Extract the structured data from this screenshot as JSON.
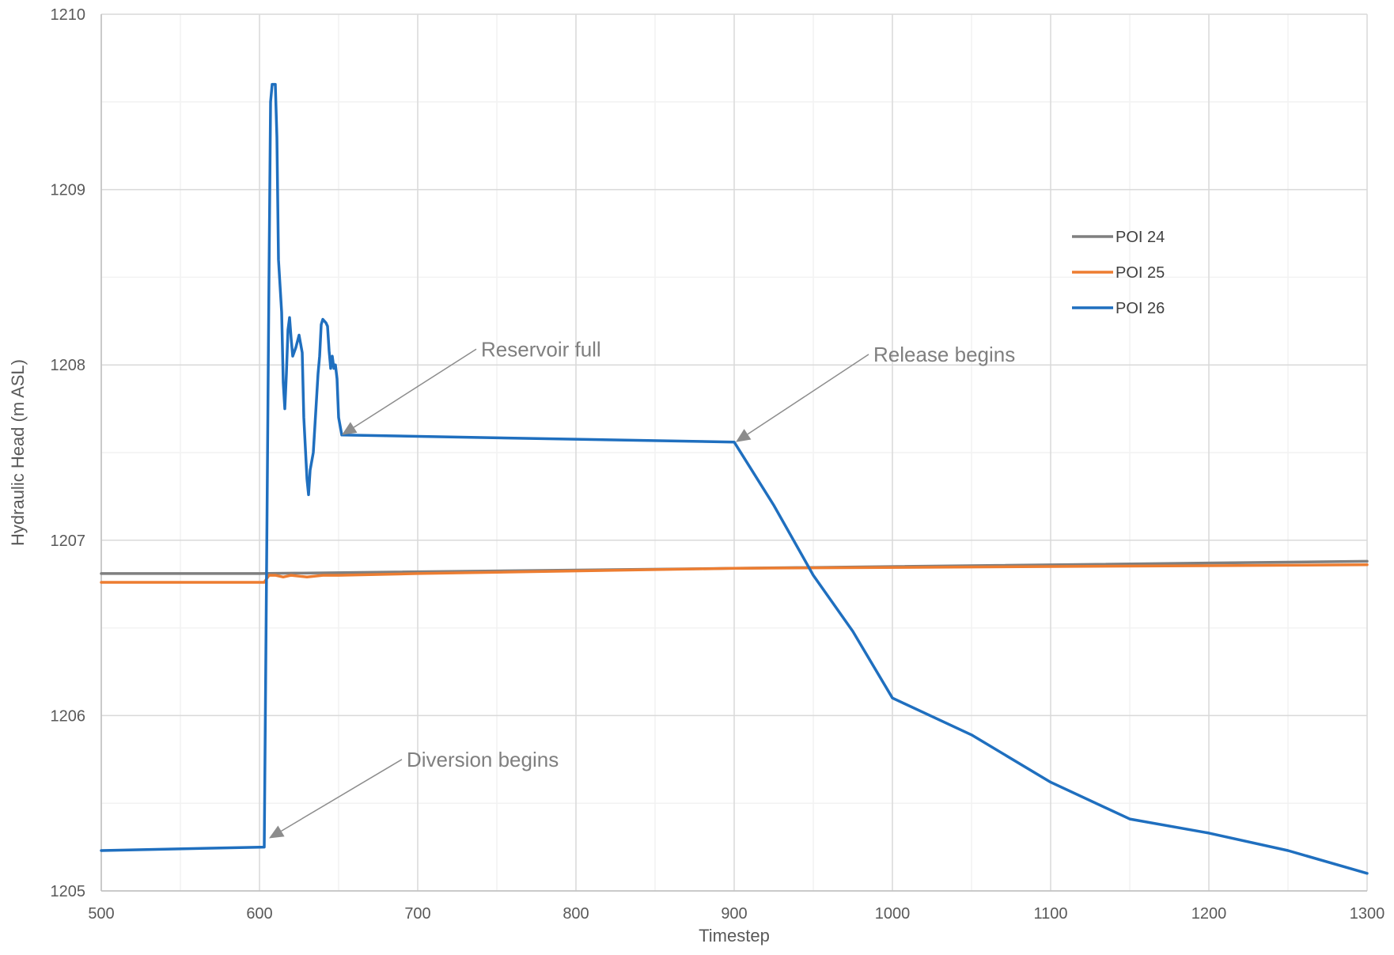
{
  "chart_data": {
    "type": "line",
    "title": "",
    "xlabel": "Timestep",
    "ylabel": "Hydraulic Head (m ASL)",
    "xlim": [
      500,
      1300
    ],
    "ylim": [
      1205,
      1210
    ],
    "x_ticks": [
      500,
      600,
      700,
      800,
      900,
      1000,
      1100,
      1200,
      1300
    ],
    "y_ticks": [
      1205,
      1206,
      1207,
      1208,
      1209,
      1210
    ],
    "x_minor_step": 50,
    "y_minor_step": 0.5,
    "grid": true,
    "legend_position": "right",
    "series": [
      {
        "name": "POI 24",
        "color": "#7f7f7f",
        "points": [
          [
            500,
            1206.81
          ],
          [
            600,
            1206.81
          ],
          [
            900,
            1206.84
          ],
          [
            1300,
            1206.88
          ]
        ]
      },
      {
        "name": "POI 25",
        "color": "#ed7d31",
        "points": [
          [
            500,
            1206.76
          ],
          [
            603,
            1206.76
          ],
          [
            606,
            1206.8
          ],
          [
            610,
            1206.8
          ],
          [
            615,
            1206.79
          ],
          [
            620,
            1206.8
          ],
          [
            630,
            1206.79
          ],
          [
            640,
            1206.8
          ],
          [
            650,
            1206.8
          ],
          [
            700,
            1206.81
          ],
          [
            900,
            1206.84
          ],
          [
            1300,
            1206.86
          ]
        ]
      },
      {
        "name": "POI 26",
        "color": "#1f6fbf",
        "points": [
          [
            500,
            1205.23
          ],
          [
            603,
            1205.25
          ],
          [
            605,
            1207.4
          ],
          [
            606,
            1208.5
          ],
          [
            607,
            1209.5
          ],
          [
            608,
            1209.6
          ],
          [
            610,
            1209.6
          ],
          [
            611,
            1209.3
          ],
          [
            612,
            1208.6
          ],
          [
            614,
            1208.3
          ],
          [
            615,
            1207.9
          ],
          [
            616,
            1207.75
          ],
          [
            617,
            1207.95
          ],
          [
            618,
            1208.2
          ],
          [
            619,
            1208.27
          ],
          [
            620,
            1208.15
          ],
          [
            621,
            1208.05
          ],
          [
            623,
            1208.1
          ],
          [
            625,
            1208.17
          ],
          [
            627,
            1208.07
          ],
          [
            628,
            1207.7
          ],
          [
            630,
            1207.35
          ],
          [
            631,
            1207.26
          ],
          [
            632,
            1207.4
          ],
          [
            634,
            1207.5
          ],
          [
            635,
            1207.65
          ],
          [
            637,
            1207.95
          ],
          [
            638,
            1208.05
          ],
          [
            639,
            1208.23
          ],
          [
            640,
            1208.26
          ],
          [
            642,
            1208.24
          ],
          [
            643,
            1208.22
          ],
          [
            644,
            1208.08
          ],
          [
            645,
            1207.98
          ],
          [
            646,
            1208.05
          ],
          [
            647,
            1207.98
          ],
          [
            648,
            1208.0
          ],
          [
            649,
            1207.92
          ],
          [
            650,
            1207.7
          ],
          [
            652,
            1207.6
          ],
          [
            900,
            1207.56
          ],
          [
            925,
            1207.2
          ],
          [
            950,
            1206.8
          ],
          [
            975,
            1206.48
          ],
          [
            1000,
            1206.1
          ],
          [
            1050,
            1205.89
          ],
          [
            1100,
            1205.62
          ],
          [
            1150,
            1205.41
          ],
          [
            1200,
            1205.33
          ],
          [
            1250,
            1205.23
          ],
          [
            1300,
            1205.1
          ]
        ]
      }
    ],
    "annotations": [
      {
        "text": "Reservoir full",
        "target": [
          652,
          1207.6
        ],
        "label_anchor": [
          737,
          1208.09
        ]
      },
      {
        "text": "Release begins",
        "target": [
          901,
          1207.56
        ],
        "label_anchor": [
          985,
          1208.06
        ]
      },
      {
        "text": "Diversion begins",
        "target": [
          606,
          1205.3
        ],
        "label_anchor": [
          690,
          1205.75
        ]
      }
    ]
  }
}
